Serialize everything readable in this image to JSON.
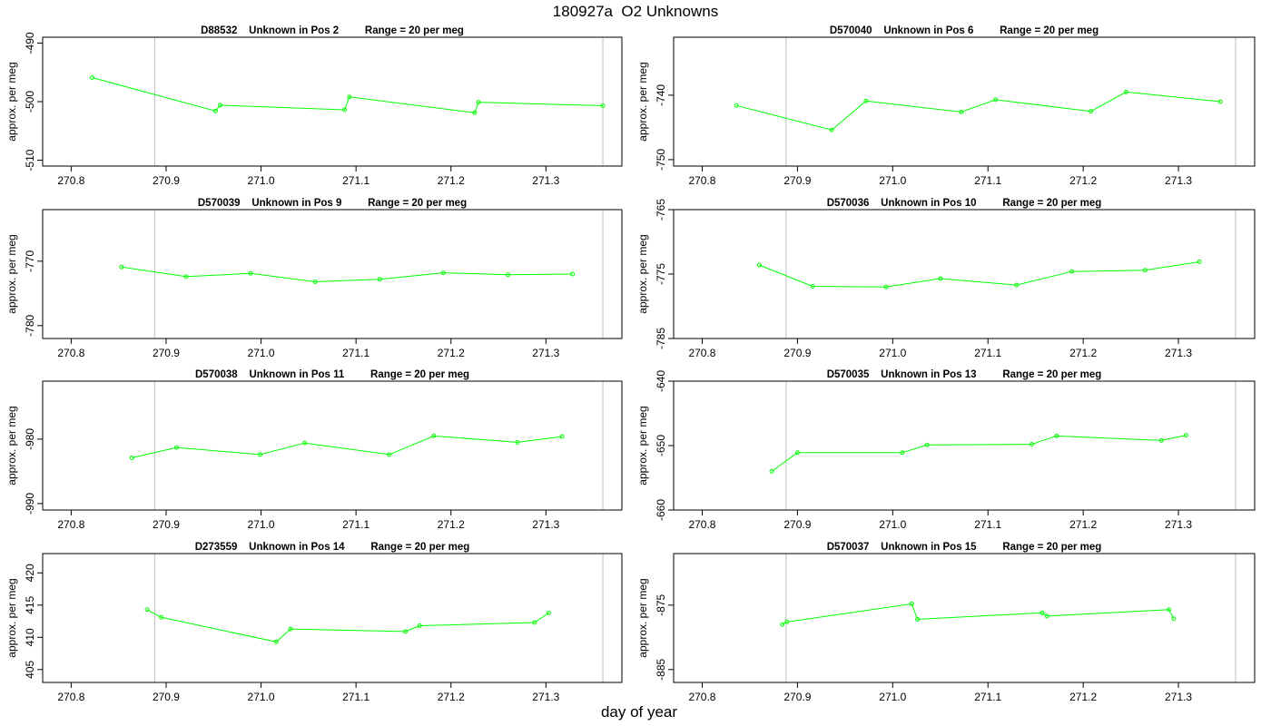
{
  "title": "180927a  O2 Unknowns",
  "xlabel": "day of year",
  "chart_data": [
    {
      "type": "line",
      "title": "D88532    Unknown in Pos 2         Range = 20 per meg",
      "ylabel": "approx. per meg",
      "x_ticks": [
        270.8,
        270.9,
        271.0,
        271.1,
        271.2,
        271.3
      ],
      "y_ticks": [
        -490,
        -500,
        -510
      ],
      "xlim": [
        270.77,
        271.38
      ],
      "ylim": [
        -511,
        -489
      ],
      "vlines": [
        270.888,
        271.36
      ],
      "series": [
        {
          "color": "#00ff00",
          "x": [
            270.822,
            270.952,
            270.957,
            271.088,
            271.093,
            271.225,
            271.229,
            271.36
          ],
          "y": [
            -495.9,
            -501.6,
            -500.6,
            -501.4,
            -499.2,
            -501.9,
            -500.1,
            -500.7
          ]
        }
      ]
    },
    {
      "type": "line",
      "title": "D570040    Unknown in Pos 6         Range = 20 per meg",
      "ylabel": "approx. per meg",
      "x_ticks": [
        270.8,
        270.9,
        271.0,
        271.1,
        271.2,
        271.3
      ],
      "y_ticks": [
        -740,
        -750
      ],
      "xlim": [
        270.77,
        271.38
      ],
      "ylim": [
        -751,
        -731
      ],
      "vlines": [
        270.888,
        271.36
      ],
      "series": [
        {
          "color": "#00ff00",
          "x": [
            270.836,
            270.936,
            270.972,
            271.072,
            271.108,
            271.208,
            271.245,
            271.344
          ],
          "y": [
            -741.6,
            -745.4,
            -740.9,
            -742.6,
            -740.7,
            -742.5,
            -739.5,
            -741.0
          ]
        }
      ]
    },
    {
      "type": "line",
      "title": "D570039    Unknown in Pos 9         Range = 20 per meg",
      "ylabel": "approx. per meg",
      "x_ticks": [
        270.8,
        270.9,
        271.0,
        271.1,
        271.2,
        271.3
      ],
      "y_ticks": [
        -770,
        -780
      ],
      "xlim": [
        270.77,
        271.38
      ],
      "ylim": [
        -782,
        -762
      ],
      "vlines": [
        270.888,
        271.36
      ],
      "series": [
        {
          "color": "#00ff00",
          "x": [
            270.853,
            270.921,
            270.989,
            271.057,
            271.125,
            271.192,
            271.26,
            271.328
          ],
          "y": [
            -770.9,
            -772.4,
            -771.9,
            -773.2,
            -772.8,
            -771.8,
            -772.1,
            -772.0
          ]
        }
      ]
    },
    {
      "type": "line",
      "title": "D570036    Unknown in Pos 10         Range = 20 per meg",
      "ylabel": "approx. per meg",
      "x_ticks": [
        270.8,
        270.9,
        271.0,
        271.1,
        271.2,
        271.3
      ],
      "y_ticks": [
        -765,
        -775,
        -785
      ],
      "xlim": [
        270.77,
        271.38
      ],
      "ylim": [
        -785,
        -765
      ],
      "vlines": [
        270.888,
        271.36
      ],
      "series": [
        {
          "color": "#00ff00",
          "x": [
            270.86,
            270.916,
            270.993,
            271.05,
            271.13,
            271.188,
            271.265,
            271.322
          ],
          "y": [
            -773.6,
            -776.9,
            -777.0,
            -775.7,
            -776.7,
            -774.6,
            -774.4,
            -773.1
          ]
        }
      ]
    },
    {
      "type": "line",
      "title": "D570038    Unknown in Pos 11         Range = 20 per meg",
      "ylabel": "approx. per meg",
      "x_ticks": [
        270.8,
        270.9,
        271.0,
        271.1,
        271.2,
        271.3
      ],
      "y_ticks": [
        -980,
        -990
      ],
      "xlim": [
        270.77,
        271.38
      ],
      "ylim": [
        -991,
        -971
      ],
      "vlines": [
        270.888,
        271.36
      ],
      "series": [
        {
          "color": "#00ff00",
          "x": [
            270.864,
            270.911,
            270.999,
            271.046,
            271.135,
            271.182,
            271.27,
            271.317
          ],
          "y": [
            -982.9,
            -981.3,
            -982.4,
            -980.6,
            -982.4,
            -979.5,
            -980.5,
            -979.6
          ]
        }
      ]
    },
    {
      "type": "line",
      "title": "D570035    Unknown in Pos 13         Range = 20 per meg",
      "ylabel": "approx. per meg",
      "x_ticks": [
        270.8,
        270.9,
        271.0,
        271.1,
        271.2,
        271.3
      ],
      "y_ticks": [
        -640,
        -650,
        -660
      ],
      "xlim": [
        270.77,
        271.38
      ],
      "ylim": [
        -660,
        -640
      ],
      "vlines": [
        270.888,
        271.36
      ],
      "series": [
        {
          "color": "#00ff00",
          "x": [
            270.873,
            270.9,
            271.01,
            271.036,
            271.146,
            271.172,
            271.282,
            271.308
          ],
          "y": [
            -654.0,
            -651.1,
            -651.1,
            -649.9,
            -649.8,
            -648.5,
            -649.2,
            -648.4
          ]
        }
      ]
    },
    {
      "type": "line",
      "title": "D273559    Unknown in Pos 14         Range = 20 per meg",
      "ylabel": "approx. per meg",
      "x_ticks": [
        270.8,
        270.9,
        271.0,
        271.1,
        271.2,
        271.3
      ],
      "y_ticks": [
        405,
        410,
        415,
        420
      ],
      "xlim": [
        270.77,
        271.38
      ],
      "ylim": [
        403,
        423
      ],
      "vlines": [
        270.888,
        271.36
      ],
      "series": [
        {
          "color": "#00ff00",
          "x": [
            270.88,
            270.895,
            271.016,
            271.031,
            271.152,
            271.167,
            271.288,
            271.303
          ],
          "y": [
            414.3,
            413.1,
            409.3,
            411.3,
            410.9,
            411.8,
            412.3,
            413.8
          ]
        }
      ]
    },
    {
      "type": "line",
      "title": "D570037    Unknown in Pos 15         Range = 20 per meg",
      "ylabel": "approx. per meg",
      "x_ticks": [
        270.8,
        270.9,
        271.0,
        271.1,
        271.2,
        271.3
      ],
      "y_ticks": [
        -875,
        -885
      ],
      "xlim": [
        270.77,
        271.38
      ],
      "ylim": [
        -887,
        -867
      ],
      "vlines": [
        270.888,
        271.36
      ],
      "series": [
        {
          "color": "#00ff00",
          "x": [
            270.884,
            270.889,
            271.02,
            271.026,
            271.157,
            271.162,
            271.29,
            271.295
          ],
          "y": [
            -878.0,
            -877.6,
            -874.8,
            -877.2,
            -876.2,
            -876.7,
            -875.7,
            -877.1
          ]
        }
      ]
    }
  ]
}
